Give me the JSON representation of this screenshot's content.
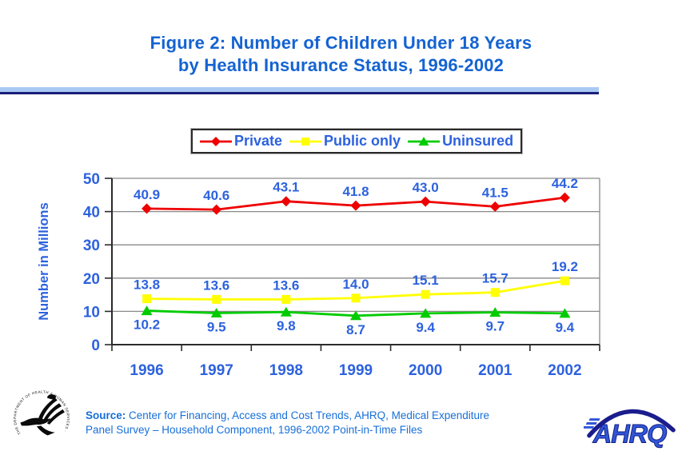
{
  "title": {
    "line1": "Figure 2: Number of Children Under 18 Years",
    "line2": "by Health Insurance Status, 1996-2002"
  },
  "chart_data": {
    "type": "line",
    "title": "Figure 2: Number of Children Under 18 Years by Health Insurance Status, 1996-2002",
    "categories": [
      "1996",
      "1997",
      "1998",
      "1999",
      "2000",
      "2001",
      "2002"
    ],
    "series": [
      {
        "name": "Private",
        "marker": "diamond",
        "color": "#ee0000",
        "values": [
          40.9,
          40.6,
          43.1,
          41.8,
          43.0,
          41.5,
          44.2
        ],
        "labels": "above"
      },
      {
        "name": "Public only",
        "marker": "square",
        "color": "#ffff00",
        "values": [
          13.8,
          13.6,
          13.6,
          14.0,
          15.1,
          15.7,
          19.2
        ],
        "labels": "above"
      },
      {
        "name": "Uninsured",
        "marker": "triangle",
        "color": "#00cc00",
        "values": [
          10.2,
          9.5,
          9.8,
          8.7,
          9.4,
          9.7,
          9.4
        ],
        "labels": "below"
      }
    ],
    "xlabel": "",
    "ylabel": "Number in Millions",
    "ylim": [
      0,
      50
    ],
    "ytick_step": 10,
    "grid": true,
    "legend_position": "top",
    "label_decimals": 1
  },
  "source": {
    "label": "Source:",
    "line1": "Center for Financing, Access and Cost Trends, AHRQ, Medical Expenditure",
    "line2": "Panel Survey – Household Component, 1996-2002 Point-in-Time Files"
  },
  "logos": {
    "ahrq_text": "AHRQ",
    "hhs_ring_text": "THE DEPARTMENT OF HEALTH & HUMAN SERVICES · USA ·"
  },
  "colors": {
    "title_blue": "#1463d2",
    "label_blue": "#2d62de",
    "source_blue": "#176fd8",
    "private_red": "#ee0000",
    "public_yellow": "#ffff00",
    "uninsured_green": "#00cc00",
    "grid_gray": "#8a8a8a",
    "axis_dark": "#2b2b2b",
    "divider_light": "#a9c9f3",
    "divider_navy": "#1b1e78"
  }
}
